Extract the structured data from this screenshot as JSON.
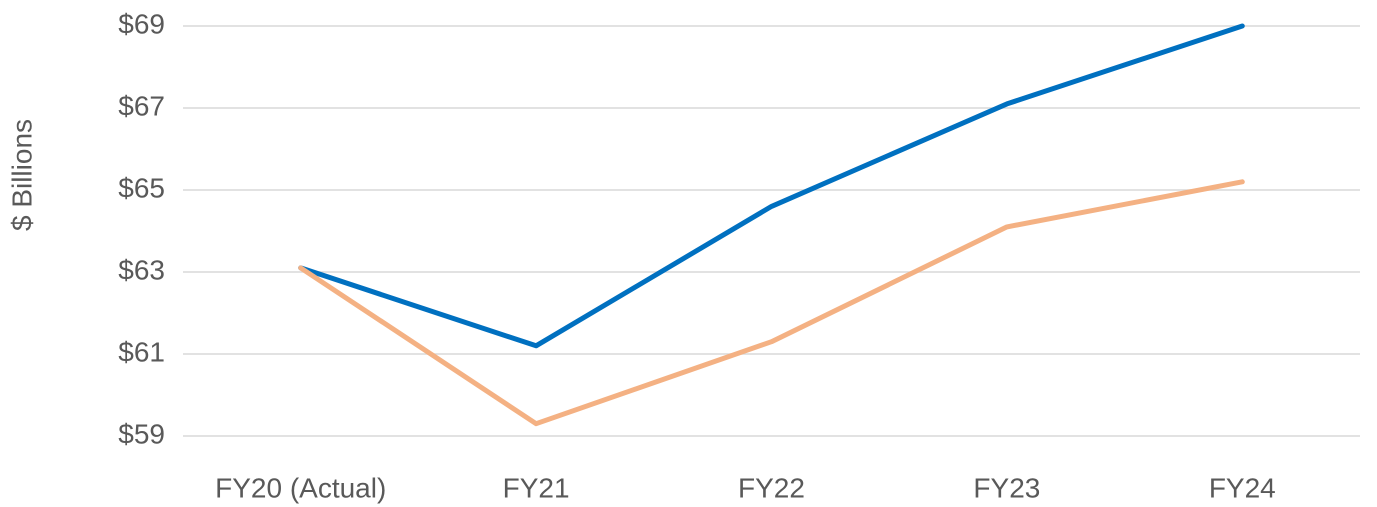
{
  "chart_data": {
    "type": "line",
    "y_label": "$ Billions",
    "categories": [
      "FY20 (Actual)",
      "FY21",
      "FY22",
      "FY23",
      "FY24"
    ],
    "series": [
      {
        "color": "#0070c0",
        "values": [
          63.1,
          61.2,
          64.6,
          67.1,
          69.0
        ]
      },
      {
        "color": "#f4b183",
        "values": [
          63.1,
          59.3,
          61.3,
          64.1,
          65.2
        ]
      }
    ],
    "ylim": [
      59,
      69
    ],
    "yticks": [
      {
        "value": 59,
        "label": "$59"
      },
      {
        "value": 61,
        "label": "$61"
      },
      {
        "value": 63,
        "label": "$63"
      },
      {
        "value": 65,
        "label": "$65"
      },
      {
        "value": 67,
        "label": "$67"
      },
      {
        "value": 69,
        "label": "$69"
      }
    ],
    "grid": true
  }
}
